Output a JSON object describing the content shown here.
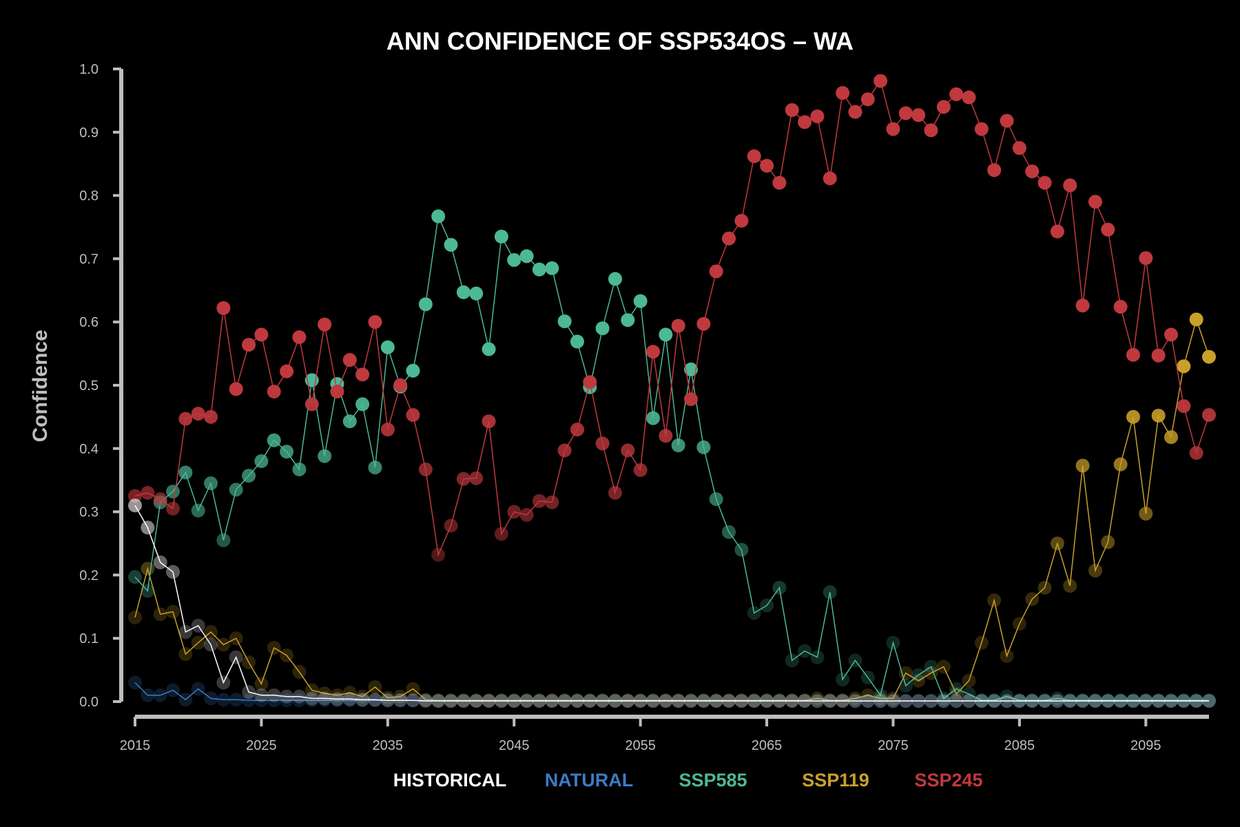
{
  "chart_data": {
    "type": "line",
    "title": "ANN CONFIDENCE OF SSP534OS – WA",
    "xlabel": "",
    "ylabel": "Confidence",
    "xlim": [
      2015,
      2100
    ],
    "ylim": [
      0,
      1
    ],
    "x_ticks": [
      2015,
      2025,
      2035,
      2045,
      2055,
      2065,
      2075,
      2085,
      2095
    ],
    "y_ticks": [
      "0.0",
      "0.1",
      "0.2",
      "0.3",
      "0.4",
      "0.5",
      "0.6",
      "0.7",
      "0.8",
      "0.9",
      "1.0"
    ],
    "grid": false,
    "legend": "bottom-center",
    "x": [
      2015,
      2016,
      2017,
      2018,
      2019,
      2020,
      2021,
      2022,
      2023,
      2024,
      2025,
      2026,
      2027,
      2028,
      2029,
      2030,
      2031,
      2032,
      2033,
      2034,
      2035,
      2036,
      2037,
      2038,
      2039,
      2040,
      2041,
      2042,
      2043,
      2044,
      2045,
      2046,
      2047,
      2048,
      2049,
      2050,
      2051,
      2052,
      2053,
      2054,
      2055,
      2056,
      2057,
      2058,
      2059,
      2060,
      2061,
      2062,
      2063,
      2064,
      2065,
      2066,
      2067,
      2068,
      2069,
      2070,
      2071,
      2072,
      2073,
      2074,
      2075,
      2076,
      2077,
      2078,
      2079,
      2080,
      2081,
      2082,
      2083,
      2084,
      2085,
      2086,
      2087,
      2088,
      2089,
      2090,
      2091,
      2092,
      2093,
      2094,
      2095,
      2096,
      2097,
      2098,
      2099,
      2100
    ],
    "series": [
      {
        "name": "HISTORICAL",
        "color": "#ffffff",
        "values": [
          0.31,
          0.275,
          0.22,
          0.205,
          0.11,
          0.12,
          0.09,
          0.03,
          0.07,
          0.015,
          0.01,
          0.01,
          0.008,
          0.008,
          0.005,
          0.005,
          0.004,
          0.004,
          0.003,
          0.003,
          0.002,
          0.002,
          0.002,
          0.001,
          0.001,
          0.001,
          0.001,
          0.001,
          0.001,
          0.001,
          0.001,
          0.001,
          0.001,
          0.001,
          0.001,
          0.001,
          0.001,
          0.001,
          0.001,
          0.001,
          0.001,
          0.001,
          0.001,
          0.001,
          0.001,
          0.001,
          0.001,
          0.001,
          0.001,
          0.001,
          0.001,
          0.001,
          0.001,
          0.001,
          0.001,
          0.001,
          0.001,
          0.001,
          0.001,
          0.001,
          0.001,
          0.001,
          0.001,
          0.001,
          0.001,
          0.001,
          0.001,
          0.001,
          0.001,
          0.001,
          0.001,
          0.001,
          0.001,
          0.001,
          0.001,
          0.001,
          0.001,
          0.001,
          0.001,
          0.001,
          0.001,
          0.001,
          0.001,
          0.001,
          0.001,
          0.001
        ]
      },
      {
        "name": "NATURAL",
        "color": "#3d7ac4",
        "values": [
          0.03,
          0.01,
          0.01,
          0.018,
          0.003,
          0.02,
          0.005,
          0.003,
          0.003,
          0.002,
          0.002,
          0.002,
          0.002,
          0.002,
          0.002,
          0.002,
          0.002,
          0.002,
          0.002,
          0.002,
          0.002,
          0.002,
          0.002,
          0.002,
          0.001,
          0.001,
          0.001,
          0.001,
          0.001,
          0.001,
          0.001,
          0.001,
          0.001,
          0.001,
          0.001,
          0.001,
          0.001,
          0.001,
          0.001,
          0.001,
          0.001,
          0.001,
          0.001,
          0.001,
          0.001,
          0.001,
          0.001,
          0.001,
          0.001,
          0.001,
          0.001,
          0.001,
          0.001,
          0.001,
          0.001,
          0.001,
          0.001,
          0.001,
          0.001,
          0.001,
          0.001,
          0.001,
          0.001,
          0.001,
          0.001,
          0.001,
          0.001,
          0.001,
          0.001,
          0.001,
          0.001,
          0.001,
          0.001,
          0.001,
          0.001,
          0.001,
          0.001,
          0.001,
          0.001,
          0.001,
          0.001,
          0.001,
          0.001,
          0.001,
          0.001,
          0.001
        ]
      },
      {
        "name": "SSP585",
        "color": "#4cb896",
        "values": [
          0.197,
          0.175,
          0.315,
          0.332,
          0.362,
          0.302,
          0.345,
          0.255,
          0.335,
          0.357,
          0.38,
          0.413,
          0.395,
          0.367,
          0.508,
          0.388,
          0.502,
          0.443,
          0.47,
          0.37,
          0.56,
          0.498,
          0.523,
          0.628,
          0.767,
          0.722,
          0.647,
          0.645,
          0.557,
          0.735,
          0.698,
          0.704,
          0.683,
          0.685,
          0.601,
          0.569,
          0.497,
          0.59,
          0.668,
          0.603,
          0.633,
          0.448,
          0.58,
          0.405,
          0.525,
          0.402,
          0.32,
          0.268,
          0.24,
          0.14,
          0.152,
          0.18,
          0.065,
          0.08,
          0.07,
          0.173,
          0.035,
          0.065,
          0.038,
          0.01,
          0.093,
          0.025,
          0.042,
          0.055,
          0.005,
          0.02,
          0.012,
          0.002,
          0.002,
          0.008,
          0.002,
          0.002,
          0.002,
          0.005,
          0.002,
          0.002,
          0.002,
          0.002,
          0.002,
          0.002,
          0.002,
          0.002,
          0.002,
          0.002,
          0.002,
          0.002
        ]
      },
      {
        "name": "SSP119",
        "color": "#c9a02a",
        "values": [
          0.133,
          0.21,
          0.138,
          0.142,
          0.075,
          0.093,
          0.11,
          0.09,
          0.1,
          0.062,
          0.028,
          0.085,
          0.073,
          0.047,
          0.018,
          0.013,
          0.01,
          0.014,
          0.008,
          0.023,
          0.006,
          0.008,
          0.02,
          0.003,
          0.002,
          0.002,
          0.002,
          0.002,
          0.002,
          0.002,
          0.002,
          0.002,
          0.002,
          0.002,
          0.002,
          0.002,
          0.002,
          0.002,
          0.002,
          0.002,
          0.002,
          0.002,
          0.002,
          0.002,
          0.002,
          0.002,
          0.002,
          0.002,
          0.002,
          0.002,
          0.002,
          0.002,
          0.002,
          0.002,
          0.005,
          0.002,
          0.002,
          0.005,
          0.01,
          0.005,
          0.005,
          0.045,
          0.033,
          0.045,
          0.055,
          0.012,
          0.033,
          0.093,
          0.16,
          0.072,
          0.123,
          0.162,
          0.18,
          0.25,
          0.183,
          0.373,
          0.207,
          0.252,
          0.375,
          0.45,
          0.297,
          0.452,
          0.418,
          0.53,
          0.604,
          0.545
        ]
      },
      {
        "name": "SSP245",
        "color": "#c0393e",
        "values": [
          0.325,
          0.33,
          0.32,
          0.305,
          0.447,
          0.455,
          0.45,
          0.622,
          0.494,
          0.564,
          0.58,
          0.49,
          0.522,
          0.576,
          0.47,
          0.596,
          0.49,
          0.54,
          0.517,
          0.6,
          0.43,
          0.5,
          0.453,
          0.367,
          0.232,
          0.278,
          0.352,
          0.353,
          0.443,
          0.265,
          0.3,
          0.295,
          0.317,
          0.315,
          0.397,
          0.43,
          0.505,
          0.408,
          0.33,
          0.397,
          0.366,
          0.553,
          0.42,
          0.594,
          0.478,
          0.597,
          0.68,
          0.732,
          0.76,
          0.862,
          0.847,
          0.82,
          0.935,
          0.916,
          0.925,
          0.827,
          0.962,
          0.932,
          0.952,
          0.981,
          0.905,
          0.93,
          0.927,
          0.903,
          0.94,
          0.96,
          0.955,
          0.905,
          0.84,
          0.918,
          0.875,
          0.838,
          0.82,
          0.743,
          0.816,
          0.626,
          0.79,
          0.746,
          0.624,
          0.548,
          0.701,
          0.547,
          0.58,
          0.467,
          0.393,
          0.453
        ]
      }
    ]
  }
}
